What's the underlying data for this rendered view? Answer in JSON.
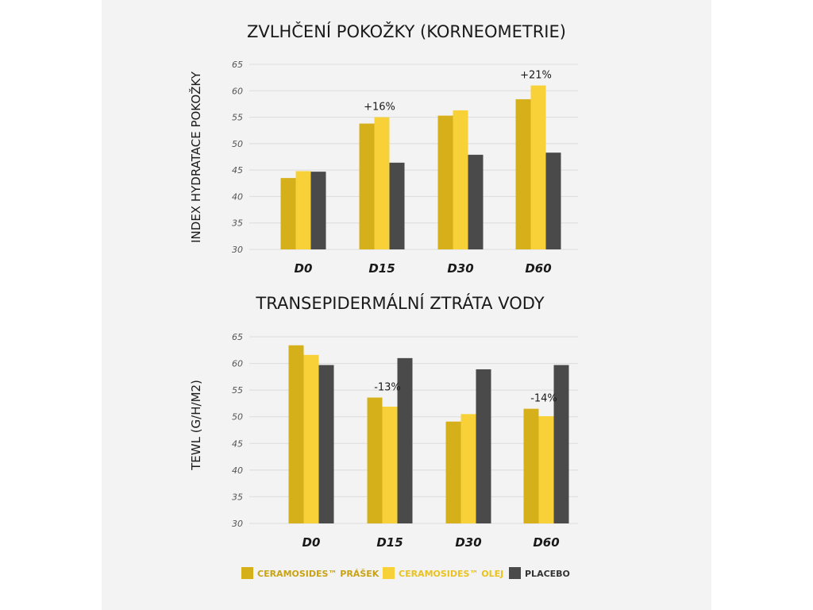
{
  "chart_data": [
    {
      "type": "bar",
      "title": "ZVLHČENÍ POKOŽKY (KORNEOMETRIE)",
      "ylabel": "INDEX HYDRATACE POKOŽKY",
      "xlabel": "",
      "categories": [
        "D0",
        "D15",
        "D30",
        "D60"
      ],
      "ylim": [
        30,
        65
      ],
      "yticks": [
        30,
        35,
        40,
        45,
        50,
        55,
        60,
        65
      ],
      "grid": true,
      "series": [
        {
          "name": "CERAMOSIDES™ PRÁŠEK",
          "values": [
            43.5,
            53.8,
            55.3,
            58.4
          ]
        },
        {
          "name": "CERAMOSIDES™ OLEJ",
          "values": [
            44.8,
            55.0,
            56.3,
            61.0
          ]
        },
        {
          "name": "PLACEBO",
          "values": [
            44.7,
            46.4,
            47.9,
            48.3
          ]
        }
      ],
      "annotations": [
        {
          "category": "D15",
          "text": "+16%"
        },
        {
          "category": "D60",
          "text": "+21%"
        }
      ]
    },
    {
      "type": "bar",
      "title": "TRANSEPIDERMÁLNÍ ZTRÁTA VODY",
      "ylabel": "TEWL (G/H/M2)",
      "xlabel": "",
      "categories": [
        "D0",
        "D15",
        "D30",
        "D60"
      ],
      "ylim": [
        30,
        65
      ],
      "yticks": [
        30,
        35,
        40,
        45,
        50,
        55,
        60,
        65
      ],
      "grid": true,
      "series": [
        {
          "name": "CERAMOSIDES™ PRÁŠEK",
          "values": [
            63.4,
            53.6,
            49.1,
            51.5
          ]
        },
        {
          "name": "CERAMOSIDES™ OLEJ",
          "values": [
            61.6,
            51.9,
            50.5,
            50.1
          ]
        },
        {
          "name": "PLACEBO",
          "values": [
            59.7,
            61.0,
            58.9,
            59.7
          ]
        }
      ],
      "annotations": [
        {
          "category": "D15",
          "text": "-13%"
        },
        {
          "category": "D60",
          "text": "-14%"
        }
      ]
    }
  ],
  "legend": {
    "placement": "bottom",
    "items": [
      {
        "label": "CERAMOSIDES™ PRÁŠEK",
        "color": "#d6b01a",
        "text_color": "#c9a312"
      },
      {
        "label": "CERAMOSIDES™ OLEJ",
        "color": "#f7d137",
        "text_color": "#e9c21e"
      },
      {
        "label": "PLACEBO",
        "color": "#4a4a4a",
        "text_color": "#333333"
      }
    ]
  },
  "colors": {
    "series": [
      "#d6b01a",
      "#f7d137",
      "#4a4a4a"
    ],
    "background": "#f3f3f3",
    "grid": "#dcdcdc"
  }
}
